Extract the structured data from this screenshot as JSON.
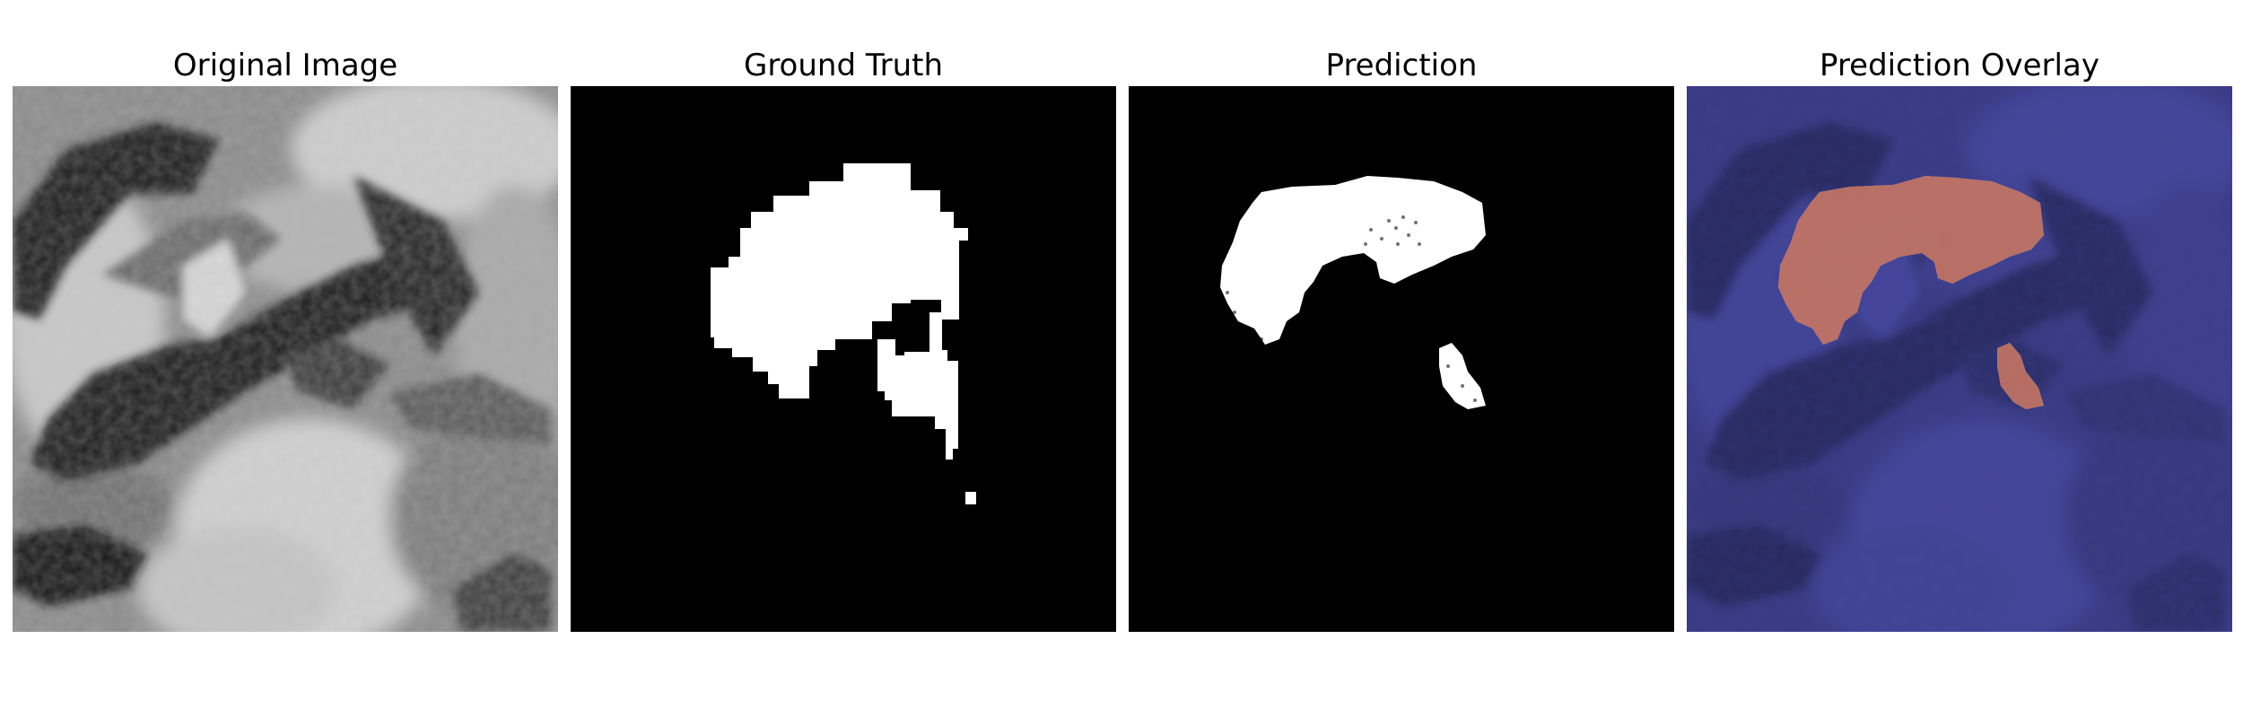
{
  "figure": {
    "panels": [
      {
        "title": "Original Image",
        "kind": "mri-grayscale"
      },
      {
        "title": "Ground Truth",
        "kind": "binary-mask"
      },
      {
        "title": "Prediction",
        "kind": "binary-mask-speckled"
      },
      {
        "title": "Prediction Overlay",
        "kind": "mri-overlay"
      }
    ],
    "colors": {
      "mask_foreground": "#ffffff",
      "mask_background": "#000000",
      "overlay_base": "#3b3f9e",
      "overlay_dark": "#0a0a4a",
      "overlay_prediction": "#b0503d"
    }
  }
}
